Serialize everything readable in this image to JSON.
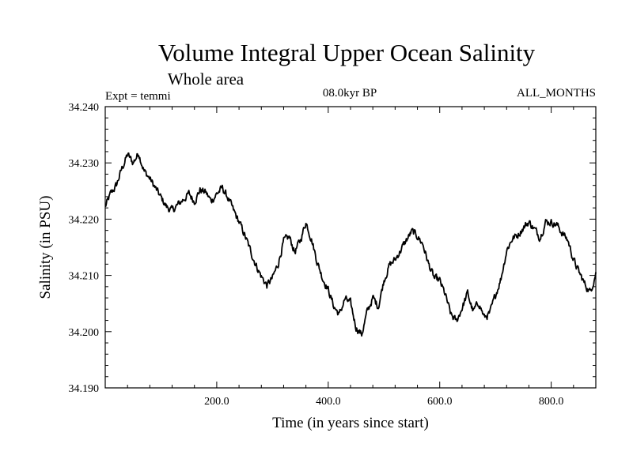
{
  "chart_data": {
    "type": "line",
    "title": "Volume Integral Upper Ocean Salinity",
    "subtitle": "Whole area",
    "experiment_label": "Expt = temmi",
    "period_label": "08.0kyr BP",
    "months_label": "ALL_MONTHS",
    "xlabel": "Time (in years since start)",
    "ylabel": "Salinity (in PSU)",
    "xlim": [
      0,
      880
    ],
    "ylim": [
      34.19,
      34.24
    ],
    "x_tick_values": [
      200,
      400,
      600,
      800
    ],
    "x_tick_labels": [
      "200.0",
      "400.0",
      "600.0",
      "800.0"
    ],
    "y_tick_values": [
      34.19,
      34.2,
      34.21,
      34.22,
      34.23,
      34.24
    ],
    "y_tick_labels": [
      "34.190",
      "34.200",
      "34.210",
      "34.220",
      "34.230",
      "34.240"
    ],
    "grid": false,
    "series": [
      {
        "name": "salinity",
        "x": [
          0,
          10,
          20,
          30,
          40,
          50,
          60,
          70,
          80,
          90,
          100,
          110,
          120,
          130,
          140,
          150,
          160,
          170,
          180,
          190,
          200,
          210,
          220,
          230,
          240,
          250,
          260,
          270,
          280,
          290,
          300,
          310,
          320,
          330,
          340,
          350,
          360,
          370,
          380,
          390,
          400,
          410,
          420,
          430,
          440,
          450,
          460,
          470,
          480,
          490,
          500,
          510,
          520,
          530,
          540,
          550,
          560,
          570,
          580,
          590,
          600,
          610,
          620,
          630,
          640,
          650,
          660,
          670,
          680,
          690,
          700,
          710,
          720,
          730,
          740,
          750,
          760,
          770,
          780,
          790,
          800,
          810,
          820,
          830,
          840,
          850,
          860,
          870,
          880
        ],
        "values": [
          34.2222,
          34.2245,
          34.226,
          34.229,
          34.2315,
          34.23,
          34.2318,
          34.2285,
          34.2272,
          34.2255,
          34.2238,
          34.2222,
          34.2215,
          34.2225,
          34.2235,
          34.2245,
          34.2232,
          34.2252,
          34.2248,
          34.2232,
          34.2245,
          34.2255,
          34.2238,
          34.2215,
          34.2195,
          34.2172,
          34.2145,
          34.212,
          34.2098,
          34.2082,
          34.2095,
          34.212,
          34.216,
          34.2168,
          34.2142,
          34.2162,
          34.2195,
          34.2165,
          34.2125,
          34.2095,
          34.2075,
          34.2045,
          34.203,
          34.2058,
          34.205,
          34.2008,
          34.1995,
          34.2035,
          34.206,
          34.2045,
          34.2092,
          34.2118,
          34.2128,
          34.2145,
          34.2162,
          34.2178,
          34.217,
          34.2155,
          34.212,
          34.2095,
          34.209,
          34.2065,
          34.203,
          34.2018,
          34.2042,
          34.2068,
          34.2035,
          34.2052,
          34.2025,
          34.2032,
          34.2065,
          34.2095,
          34.2145,
          34.2165,
          34.2172,
          34.2185,
          34.2195,
          34.2182,
          34.2168,
          34.2195,
          34.2195,
          34.219,
          34.2175,
          34.2162,
          34.2128,
          34.2105,
          34.2085,
          34.207,
          34.2105
        ]
      }
    ]
  }
}
